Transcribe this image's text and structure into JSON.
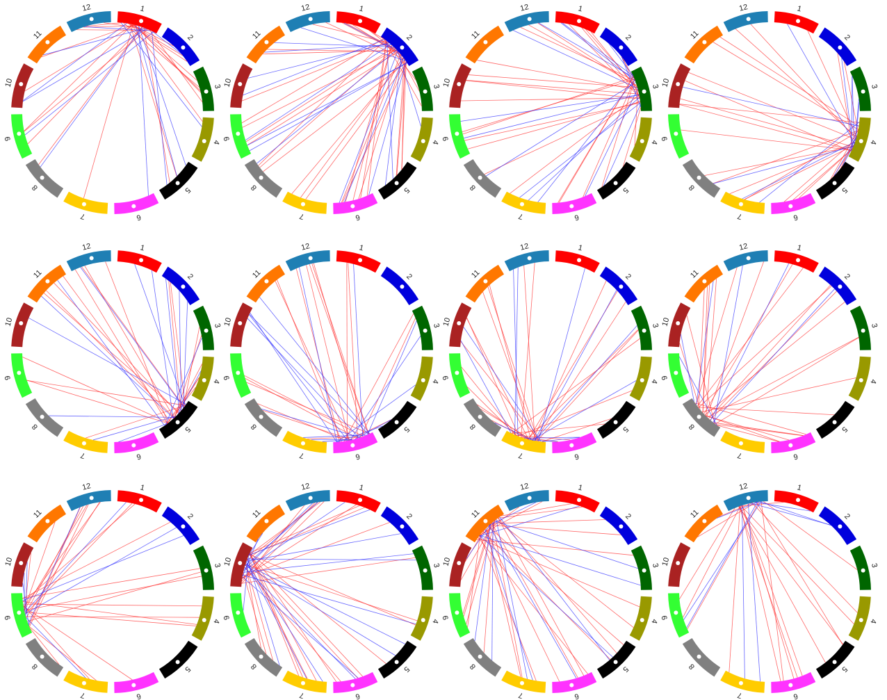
{
  "chromosomes": [
    {
      "label": "1",
      "color": "#ff0000"
    },
    {
      "label": "2",
      "color": "#0000dd"
    },
    {
      "label": "3",
      "color": "#006600"
    },
    {
      "label": "4",
      "color": "#999900"
    },
    {
      "label": "5",
      "color": "#000000"
    },
    {
      "label": "6",
      "color": "#ff33ff"
    },
    {
      "label": "7",
      "color": "#ffcc00"
    },
    {
      "label": "8",
      "color": "#808080"
    },
    {
      "label": "9",
      "color": "#33ff33"
    },
    {
      "label": "10",
      "color": "#aa2222"
    },
    {
      "label": "11",
      "color": "#ff7700"
    },
    {
      "label": "12",
      "color": "#1f7fb4"
    }
  ],
  "link_colors": {
    "red": "#ff3333",
    "blue": "#3333ff"
  },
  "panels": [
    {
      "hub": "1",
      "red_links": 22,
      "blue_links": 12
    },
    {
      "hub": "2",
      "red_links": 34,
      "blue_links": 16
    },
    {
      "hub": "3",
      "red_links": 26,
      "blue_links": 14
    },
    {
      "hub": "4",
      "red_links": 24,
      "blue_links": 12
    },
    {
      "hub": "5",
      "red_links": 20,
      "blue_links": 14
    },
    {
      "hub": "6",
      "red_links": 18,
      "blue_links": 16
    },
    {
      "hub": "7",
      "red_links": 24,
      "blue_links": 12
    },
    {
      "hub": "8",
      "red_links": 24,
      "blue_links": 6
    },
    {
      "hub": "9",
      "red_links": 22,
      "blue_links": 8
    },
    {
      "hub": "10",
      "red_links": 24,
      "blue_links": 18
    },
    {
      "hub": "11",
      "red_links": 26,
      "blue_links": 12
    },
    {
      "hub": "12",
      "red_links": 18,
      "blue_links": 8
    }
  ]
}
